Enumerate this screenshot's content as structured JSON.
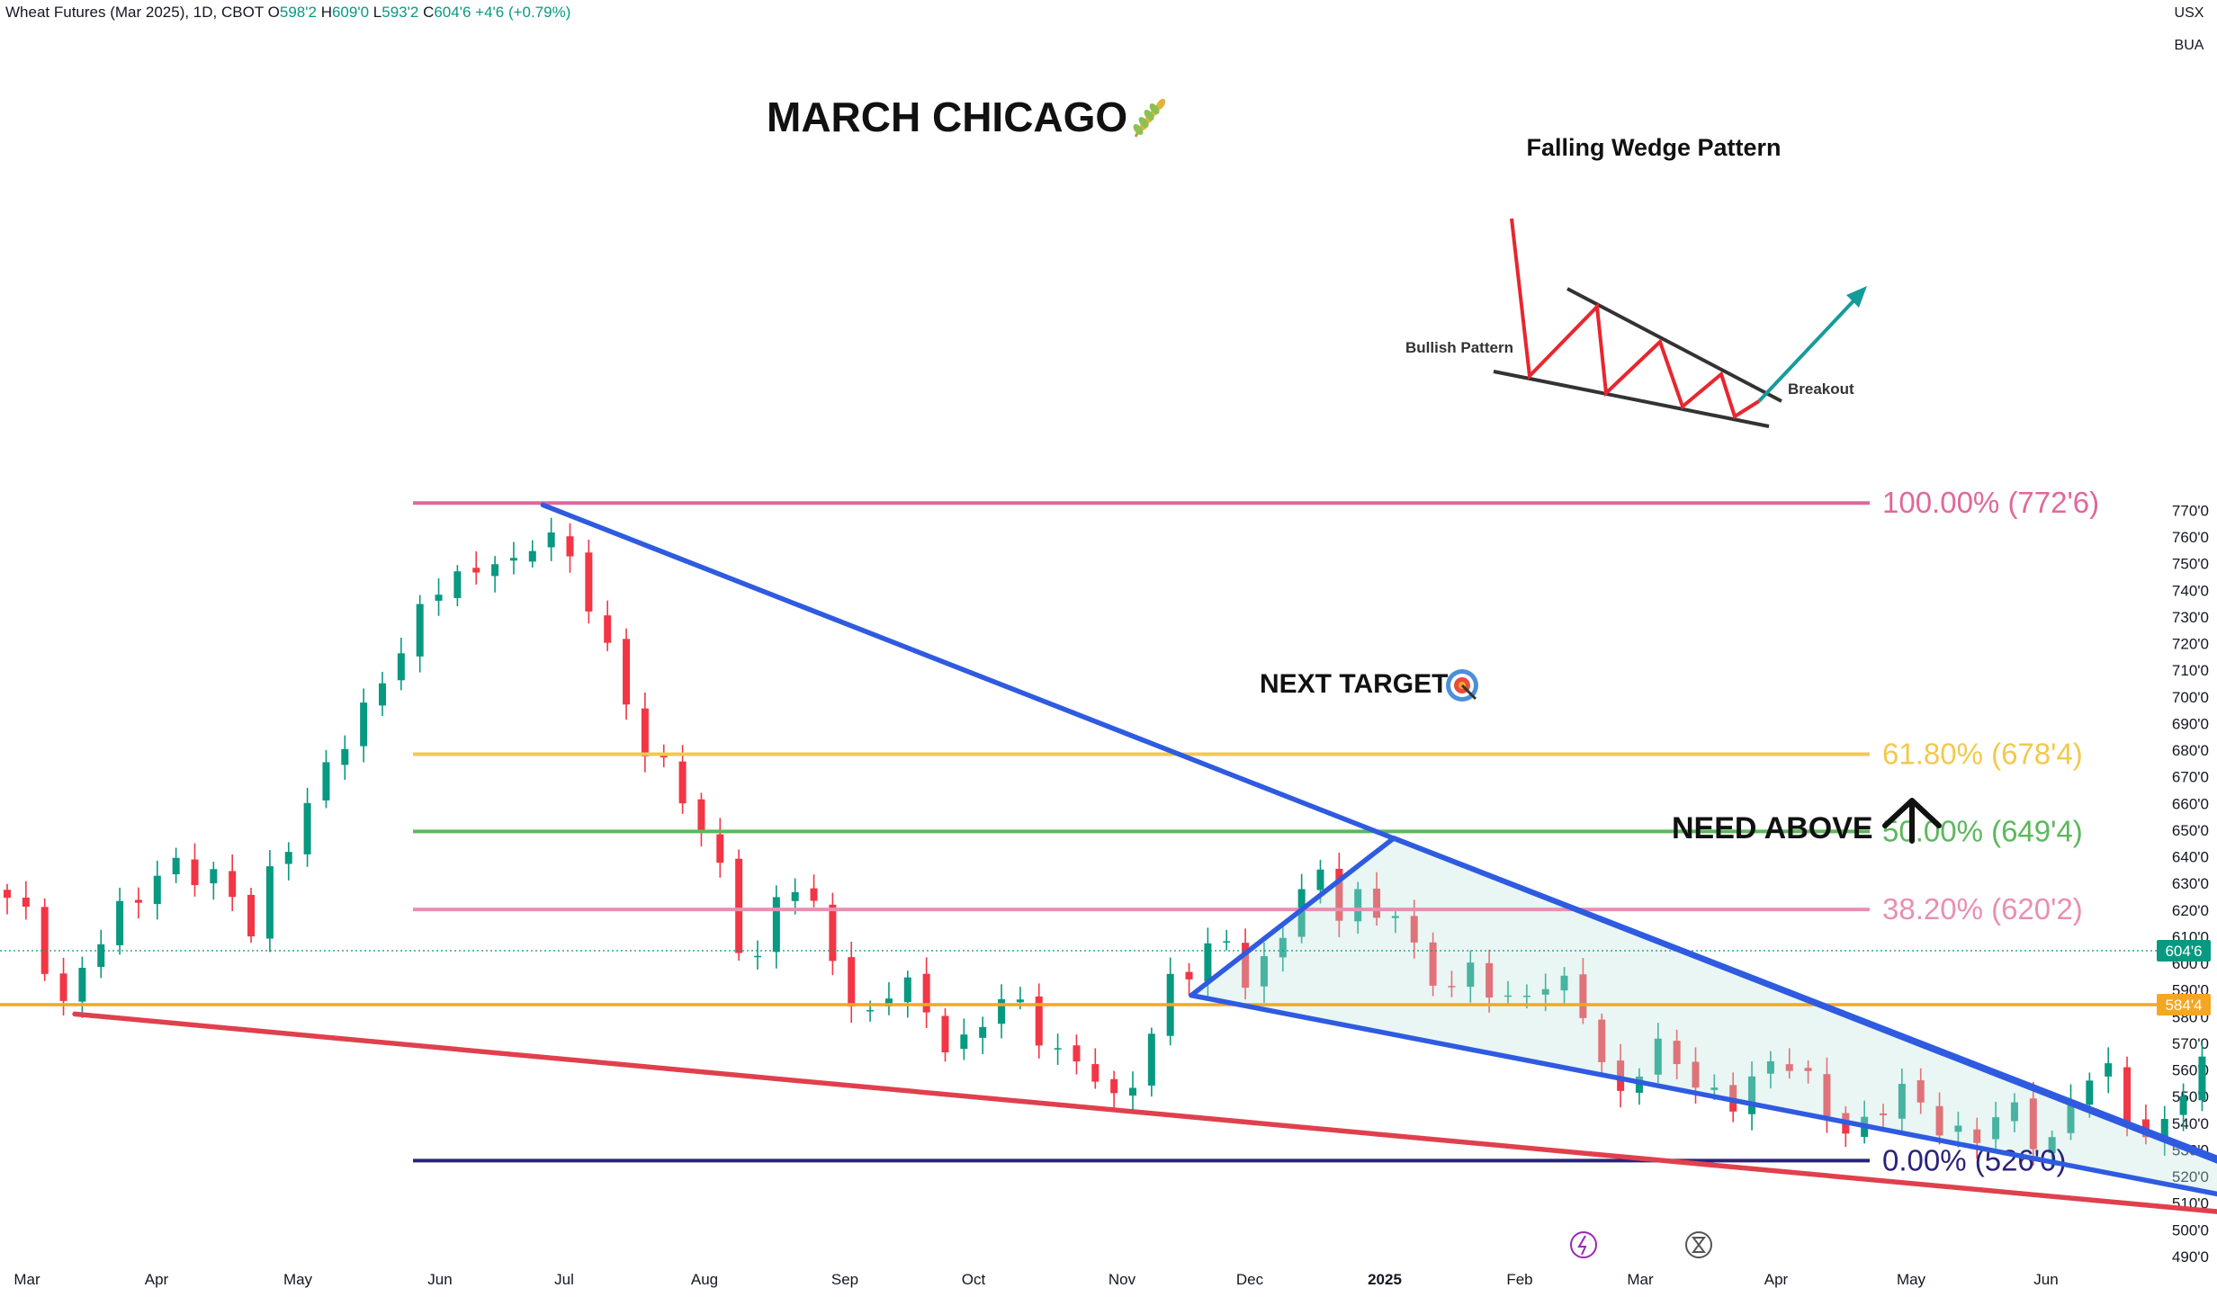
{
  "header": {
    "symbol": "Wheat Futures (Mar 2025), 1D, CBOT",
    "open_label": "O",
    "open": "598'2",
    "high_label": "H",
    "high": "609'0",
    "low_label": "L",
    "low": "593'2",
    "close_label": "C",
    "close": "604'6",
    "change": "+4'6 (+0.79%)"
  },
  "axis_corner": {
    "currency": "USX",
    "unit": "BUA"
  },
  "colors": {
    "up": "#089981",
    "down": "#f23645",
    "fib100": "#e0679b",
    "fib618": "#f2c94c",
    "fib50": "#5cb85c",
    "fib382": "#e98fb1",
    "fib0": "#2a237a",
    "support": "#f5a623",
    "wedge": "#2f5be0",
    "trend_red": "#e0404d",
    "current_tag": "#089981",
    "support_tag": "#f5a623"
  },
  "annotations": {
    "title": "MARCH CHICAGO",
    "title_icon": "wheat-icon",
    "next_target": "NEXT TARGET",
    "next_target_icon": "target-icon",
    "need_above": "NEED ABOVE",
    "need_above_icon": "arrow-up-icon",
    "inset_title": "Falling Wedge Pattern",
    "inset_bullish": "Bullish Pattern",
    "inset_breakout": "Breakout"
  },
  "chart_data": {
    "type": "candlestick",
    "title": "",
    "xlabel": "",
    "ylabel": "",
    "ylim": [
      485,
      795
    ],
    "x_axis_labels": [
      "Mar",
      "Apr",
      "May",
      "Jun",
      "Jul",
      "Aug",
      "Sep",
      "Oct",
      "Nov",
      "Dec",
      "2025",
      "Feb",
      "Mar",
      "Apr",
      "May",
      "Jun"
    ],
    "y_axis_labels": [
      "490'0",
      "500'0",
      "510'0",
      "520'0",
      "530'0",
      "540'0",
      "550'0",
      "560'0",
      "570'0",
      "580'0",
      "590'0",
      "600'0",
      "610'0",
      "620'0",
      "630'0",
      "640'0",
      "650'0",
      "660'0",
      "670'0",
      "680'0",
      "690'0",
      "700'0",
      "710'0",
      "720'0",
      "730'0",
      "740'0",
      "750'0",
      "760'0",
      "770'0"
    ],
    "y_axis_values": [
      490,
      500,
      510,
      520,
      530,
      540,
      550,
      560,
      570,
      580,
      590,
      600,
      610,
      620,
      630,
      640,
      650,
      660,
      670,
      680,
      690,
      700,
      710,
      720,
      730,
      740,
      750,
      760,
      770
    ],
    "current_price": {
      "label": "604'6",
      "value": 604.75
    },
    "support_price": {
      "label": "584'4",
      "value": 584.5
    },
    "fib_levels": [
      {
        "label": "100.00% (772'6)",
        "value": 772.75,
        "color_key": "fib100"
      },
      {
        "label": "61.80% (678'4)",
        "value": 678.5,
        "color_key": "fib618"
      },
      {
        "label": "50.00% (649'4)",
        "value": 649.5,
        "color_key": "fib50"
      },
      {
        "label": "38.20% (620'2)",
        "value": 620.25,
        "color_key": "fib382"
      },
      {
        "label": "0.00% (526'0)",
        "value": 526.0,
        "color_key": "fib0"
      }
    ],
    "price_path": [
      [
        0.0,
        622
      ],
      [
        0.4,
        618
      ],
      [
        1.0,
        596
      ],
      [
        1.3,
        583
      ],
      [
        1.6,
        597
      ],
      [
        2.2,
        610
      ],
      [
        2.8,
        625
      ],
      [
        3.6,
        640
      ],
      [
        4.2,
        631
      ],
      [
        4.8,
        629
      ],
      [
        5.2,
        623
      ],
      [
        5.5,
        612
      ],
      [
        5.8,
        633
      ],
      [
        6.5,
        650
      ],
      [
        7.0,
        670
      ],
      [
        7.6,
        690
      ],
      [
        8.1,
        700
      ],
      [
        8.6,
        712
      ],
      [
        9.0,
        722
      ],
      [
        9.4,
        740
      ],
      [
        9.9,
        750
      ],
      [
        10.3,
        743
      ],
      [
        10.8,
        752
      ],
      [
        11.2,
        745
      ],
      [
        11.7,
        758
      ],
      [
        11.9,
        772
      ],
      [
        12.2,
        762
      ],
      [
        12.5,
        750
      ],
      [
        12.9,
        735
      ],
      [
        13.2,
        721
      ],
      [
        13.5,
        710
      ],
      [
        13.8,
        693
      ],
      [
        14.1,
        685
      ],
      [
        14.5,
        678
      ],
      [
        14.9,
        664
      ],
      [
        15.3,
        652
      ],
      [
        15.7,
        640
      ],
      [
        16.0,
        625
      ],
      [
        16.3,
        607
      ],
      [
        16.6,
        599
      ],
      [
        17.0,
        622
      ],
      [
        17.4,
        630
      ],
      [
        17.8,
        621
      ],
      [
        18.2,
        610
      ],
      [
        18.5,
        598
      ],
      [
        18.8,
        585
      ],
      [
        19.1,
        578
      ],
      [
        19.5,
        588
      ],
      [
        19.9,
        592
      ],
      [
        20.3,
        584
      ],
      [
        20.7,
        576
      ],
      [
        21.0,
        568
      ],
      [
        21.4,
        572
      ],
      [
        21.8,
        580
      ],
      [
        22.2,
        586
      ],
      [
        22.6,
        582
      ],
      [
        23.0,
        574
      ],
      [
        23.4,
        566
      ],
      [
        23.8,
        562
      ],
      [
        24.1,
        558
      ],
      [
        24.4,
        549
      ],
      [
        24.7,
        544
      ],
      [
        25.0,
        558
      ],
      [
        25.4,
        575
      ],
      [
        25.7,
        588
      ],
      [
        26.0,
        600
      ],
      [
        26.3,
        595
      ],
      [
        26.7,
        603
      ],
      [
        27.1,
        610
      ],
      [
        27.5,
        596
      ],
      [
        27.9,
        599
      ],
      [
        28.3,
        610
      ],
      [
        28.7,
        622
      ],
      [
        29.0,
        638
      ],
      [
        29.3,
        629
      ],
      [
        29.7,
        620
      ],
      [
        30.1,
        628
      ],
      [
        30.5,
        614
      ],
      [
        30.9,
        618
      ],
      [
        31.3,
        601
      ],
      [
        31.7,
        597
      ],
      [
        32.1,
        592
      ],
      [
        32.5,
        598
      ],
      [
        32.9,
        589
      ],
      [
        33.3,
        582
      ],
      [
        33.7,
        590
      ],
      [
        34.1,
        595
      ],
      [
        34.5,
        593
      ],
      [
        34.9,
        588
      ],
      [
        35.2,
        568
      ],
      [
        35.5,
        556
      ],
      [
        35.8,
        550
      ],
      [
        36.2,
        563
      ],
      [
        36.6,
        570
      ],
      [
        37.0,
        565
      ],
      [
        37.4,
        553
      ],
      [
        37.8,
        550
      ],
      [
        38.2,
        548
      ],
      [
        38.6,
        556
      ],
      [
        39.0,
        560
      ],
      [
        39.4,
        563
      ],
      [
        39.8,
        558
      ],
      [
        40.2,
        551
      ],
      [
        40.6,
        543
      ],
      [
        41.0,
        537
      ],
      [
        41.4,
        540
      ],
      [
        41.8,
        547
      ],
      [
        42.2,
        552
      ],
      [
        42.6,
        547
      ],
      [
        43.0,
        540
      ],
      [
        43.4,
        535
      ],
      [
        43.8,
        533
      ],
      [
        44.2,
        541
      ],
      [
        44.6,
        545
      ],
      [
        45.0,
        537
      ],
      [
        45.4,
        533
      ],
      [
        45.8,
        546
      ],
      [
        46.2,
        556
      ],
      [
        46.6,
        560
      ],
      [
        47.0,
        547
      ],
      [
        47.4,
        538
      ],
      [
        47.8,
        534
      ],
      [
        48.2,
        548
      ],
      [
        48.6,
        559
      ],
      [
        49.0,
        563
      ],
      [
        49.4,
        570
      ],
      [
        49.8,
        578
      ],
      [
        50.2,
        585
      ],
      [
        50.6,
        590
      ],
      [
        51.0,
        582
      ],
      [
        51.4,
        578
      ],
      [
        51.8,
        583
      ],
      [
        52.1,
        595
      ],
      [
        52.5,
        604
      ]
    ],
    "trendlines": [
      {
        "name": "wedge-upper-outer",
        "color_key": "wedge",
        "points": [
          [
            11.9,
            772
          ],
          [
            54.5,
            490
          ]
        ]
      },
      {
        "name": "wedge-lower-outer",
        "color_key": "wedge",
        "points": [
          [
            26.3,
            588
          ],
          [
            53.2,
            500
          ]
        ]
      },
      {
        "name": "wedge-inner-upper",
        "color_key": "wedge",
        "points": [
          [
            30.8,
            647
          ],
          [
            53.2,
            500
          ]
        ]
      },
      {
        "name": "wedge-inner-left",
        "color_key": "wedge",
        "points": [
          [
            26.3,
            588
          ],
          [
            30.8,
            647
          ]
        ]
      },
      {
        "name": "red-support",
        "color_key": "trend_red",
        "points": [
          [
            1.5,
            581
          ],
          [
            52.2,
            502
          ]
        ]
      }
    ]
  }
}
